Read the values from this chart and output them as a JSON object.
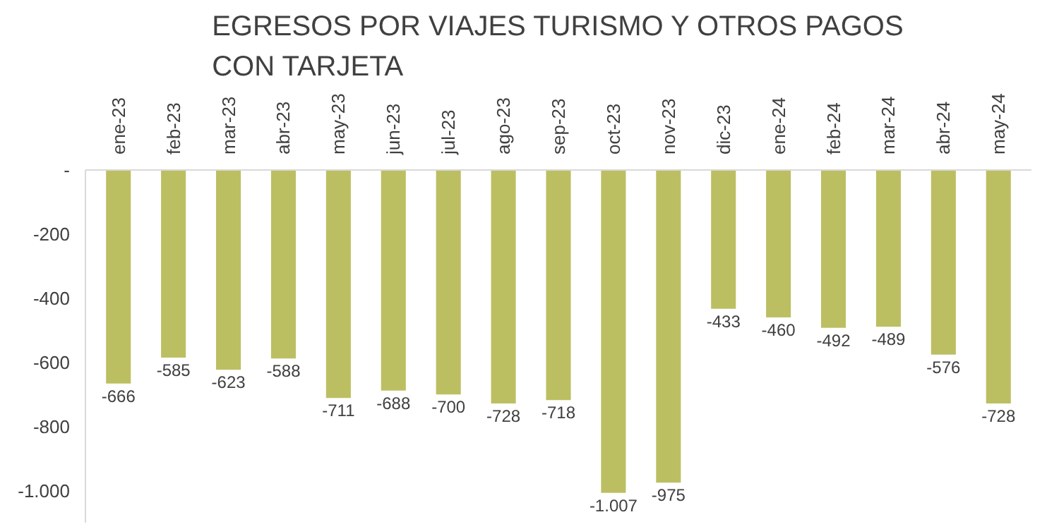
{
  "chart_data": {
    "type": "bar",
    "title": "EGRESOS POR VIAJES TURISMO Y OTROS PAGOS CON TARJETA",
    "categories": [
      "ene-23",
      "feb-23",
      "mar-23",
      "abr-23",
      "may-23",
      "jun-23",
      "jul-23",
      "ago-23",
      "sep-23",
      "oct-23",
      "nov-23",
      "dic-23",
      "ene-24",
      "feb-24",
      "mar-24",
      "abr-24",
      "may-24"
    ],
    "values": [
      -666,
      -585,
      -623,
      -588,
      -711,
      -688,
      -700,
      -728,
      -718,
      -1007,
      -975,
      -433,
      -460,
      -492,
      -489,
      -576,
      -728
    ],
    "value_labels": [
      "-666",
      "-585",
      "-623",
      "-588",
      "-711",
      "-688",
      "-700",
      "-728",
      "-718",
      "-1.007",
      "-975",
      "-433",
      "-460",
      "-492",
      "-489",
      "-576",
      "-728"
    ],
    "color": "#bbbf62",
    "ylim": [
      -1100,
      0
    ],
    "yticks": [
      {
        "value": 0,
        "label": "-"
      },
      -200,
      -400,
      -600,
      -800,
      {
        "value": -1000,
        "label": "-1.000"
      }
    ],
    "grid": false
  }
}
